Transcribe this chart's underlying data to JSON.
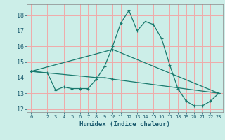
{
  "xlabel": "Humidex (Indice chaleur)",
  "background_color": "#cceee8",
  "grid_color": "#f0aaaa",
  "line_color": "#1a7a6e",
  "xlim": [
    -0.5,
    23.5
  ],
  "ylim": [
    11.8,
    18.7
  ],
  "yticks": [
    12,
    13,
    14,
    15,
    16,
    17,
    18
  ],
  "xticks": [
    0,
    2,
    3,
    4,
    5,
    6,
    7,
    8,
    9,
    10,
    11,
    12,
    13,
    14,
    15,
    16,
    17,
    18,
    19,
    20,
    21,
    22,
    23
  ],
  "line1_x": [
    0,
    2,
    3,
    4,
    5,
    6,
    7,
    8,
    9,
    10,
    11,
    12,
    13,
    14,
    15,
    16,
    17,
    18,
    19,
    20,
    21,
    22,
    23
  ],
  "line1_y": [
    14.4,
    14.3,
    13.2,
    13.4,
    13.3,
    13.3,
    13.3,
    13.9,
    14.7,
    16.0,
    17.5,
    18.3,
    17.0,
    17.6,
    17.4,
    16.5,
    14.8,
    13.3,
    12.5,
    12.2,
    12.2,
    12.5,
    13.0
  ],
  "line2_x": [
    0,
    10,
    23
  ],
  "line2_y": [
    14.4,
    15.8,
    13.0
  ],
  "line3_x": [
    0,
    8,
    9,
    10,
    23
  ],
  "line3_y": [
    14.4,
    14.0,
    14.0,
    13.9,
    13.0
  ]
}
